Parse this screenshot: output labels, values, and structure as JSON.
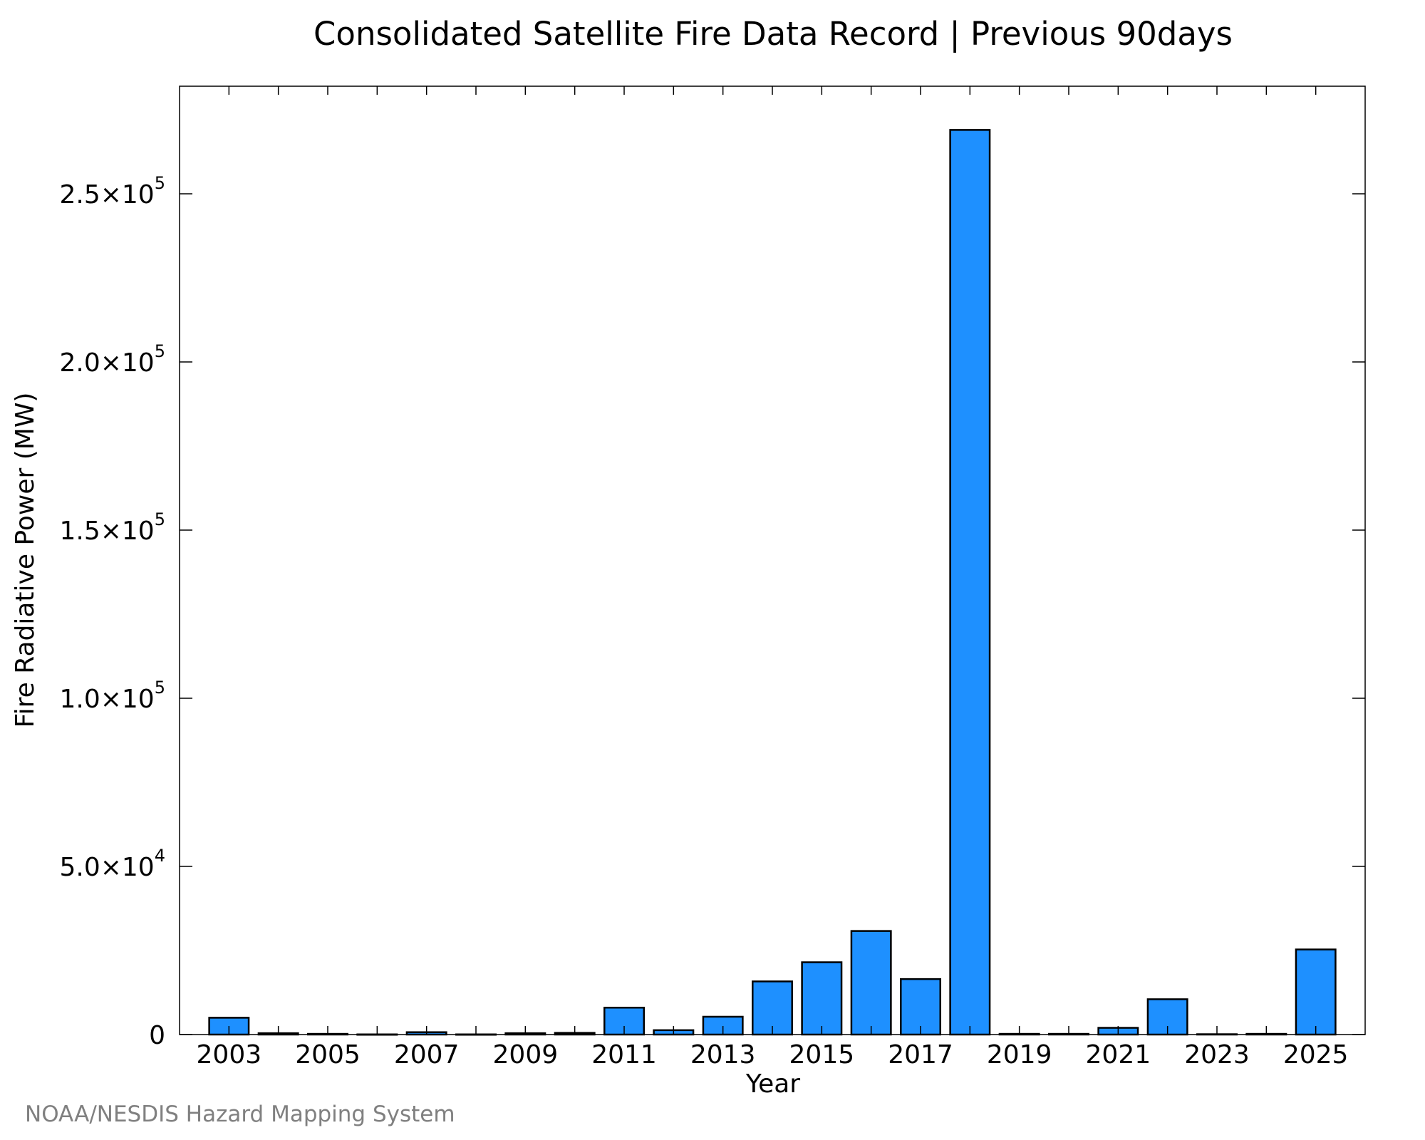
{
  "chart_data": {
    "type": "bar",
    "title": "Consolidated Satellite Fire Data Record | Previous 90days",
    "xlabel": "Year",
    "ylabel": "Fire Radiative Power (MW)",
    "categories": [
      "2003",
      "2004",
      "2005",
      "2006",
      "2007",
      "2008",
      "2009",
      "2010",
      "2011",
      "2012",
      "2013",
      "2014",
      "2015",
      "2016",
      "2017",
      "2018",
      "2019",
      "2020",
      "2021",
      "2022",
      "2023",
      "2024",
      "2025"
    ],
    "x_tick_labels": [
      "2003",
      "2005",
      "2007",
      "2009",
      "2011",
      "2013",
      "2015",
      "2017",
      "2019",
      "2021",
      "2023",
      "2025"
    ],
    "values": [
      5000,
      400,
      200,
      50,
      700,
      50,
      400,
      500,
      8000,
      1300,
      5300,
      15800,
      21500,
      30800,
      16500,
      269000,
      200,
      200,
      2000,
      10500,
      100,
      200,
      25300
    ],
    "ylim": [
      0,
      282000
    ],
    "y_ticks": [
      {
        "value": 0,
        "mantissa": "0",
        "exponent": ""
      },
      {
        "value": 50000,
        "mantissa": "5.0×10",
        "exponent": "4"
      },
      {
        "value": 100000,
        "mantissa": "1.0×10",
        "exponent": "5"
      },
      {
        "value": 150000,
        "mantissa": "1.5×10",
        "exponent": "5"
      },
      {
        "value": 200000,
        "mantissa": "2.0×10",
        "exponent": "5"
      },
      {
        "value": 250000,
        "mantissa": "2.5×10",
        "exponent": "5"
      }
    ],
    "bar_color": "#1e90ff",
    "bar_edge_color": "#000000",
    "grid": false,
    "legend": "none"
  },
  "credit": "NOAA/NESDIS Hazard Mapping System"
}
